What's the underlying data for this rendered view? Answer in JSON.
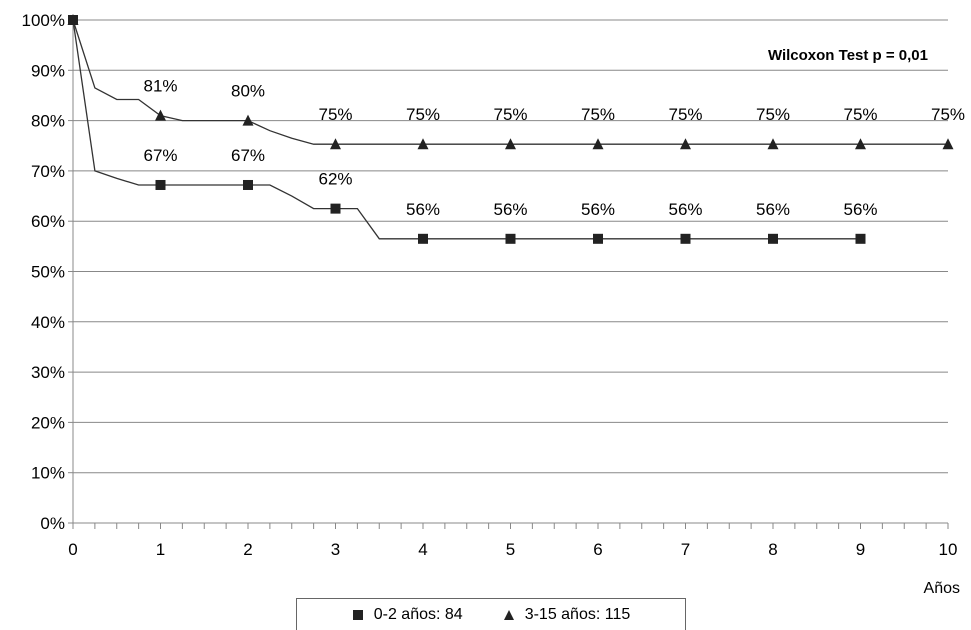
{
  "chart_data": {
    "type": "line",
    "annotation": "Wilcoxon Test p = 0,01",
    "xlabel": "Años",
    "ylabel": "",
    "xlim": [
      0,
      10
    ],
    "ylim": [
      0,
      100
    ],
    "x_ticks": [
      "0",
      "1",
      "2",
      "3",
      "4",
      "5",
      "6",
      "7",
      "8",
      "9",
      "10"
    ],
    "y_ticks": [
      "0%",
      "10%",
      "20%",
      "30%",
      "40%",
      "50%",
      "60%",
      "70%",
      "80%",
      "90%",
      "100%"
    ],
    "grid": "horizontal",
    "legend_position": "bottom",
    "series": [
      {
        "name": "0-2 años: 84",
        "marker": "square",
        "color": "#333333",
        "step_x": [
          0,
          0.25,
          0.5,
          0.75,
          1,
          2,
          2.25,
          2.5,
          2.75,
          3,
          3.25,
          3.5,
          9
        ],
        "step_y": [
          100,
          70,
          68.5,
          67.2,
          67.2,
          67.2,
          67.2,
          65,
          62.5,
          62.5,
          62.5,
          56.5,
          56.5
        ],
        "points": [
          {
            "x": 0,
            "y": 100,
            "label": ""
          },
          {
            "x": 1,
            "y": 67.2,
            "label": "67%"
          },
          {
            "x": 2,
            "y": 67.2,
            "label": "67%"
          },
          {
            "x": 3,
            "y": 62.5,
            "label": "62%"
          },
          {
            "x": 4,
            "y": 56.5,
            "label": "56%"
          },
          {
            "x": 5,
            "y": 56.5,
            "label": "56%"
          },
          {
            "x": 6,
            "y": 56.5,
            "label": "56%"
          },
          {
            "x": 7,
            "y": 56.5,
            "label": "56%"
          },
          {
            "x": 8,
            "y": 56.5,
            "label": "56%"
          },
          {
            "x": 9,
            "y": 56.5,
            "label": "56%"
          }
        ]
      },
      {
        "name": "3-15 años: 115",
        "marker": "triangle",
        "color": "#333333",
        "step_x": [
          0,
          0.25,
          0.5,
          0.75,
          1,
          1.25,
          2,
          2.25,
          2.5,
          2.75,
          10
        ],
        "step_y": [
          100,
          86.5,
          84.2,
          84.2,
          81,
          80,
          80,
          78,
          76.5,
          75.3,
          75.3
        ],
        "points": [
          {
            "x": 0,
            "y": 100,
            "label": ""
          },
          {
            "x": 1,
            "y": 81,
            "label": "81%"
          },
          {
            "x": 2,
            "y": 80,
            "label": "80%"
          },
          {
            "x": 3,
            "y": 75.3,
            "label": "75%"
          },
          {
            "x": 4,
            "y": 75.3,
            "label": "75%"
          },
          {
            "x": 5,
            "y": 75.3,
            "label": "75%"
          },
          {
            "x": 6,
            "y": 75.3,
            "label": "75%"
          },
          {
            "x": 7,
            "y": 75.3,
            "label": "75%"
          },
          {
            "x": 8,
            "y": 75.3,
            "label": "75%"
          },
          {
            "x": 9,
            "y": 75.3,
            "label": "75%"
          },
          {
            "x": 10,
            "y": 75.3,
            "label": "75%"
          }
        ]
      }
    ]
  }
}
